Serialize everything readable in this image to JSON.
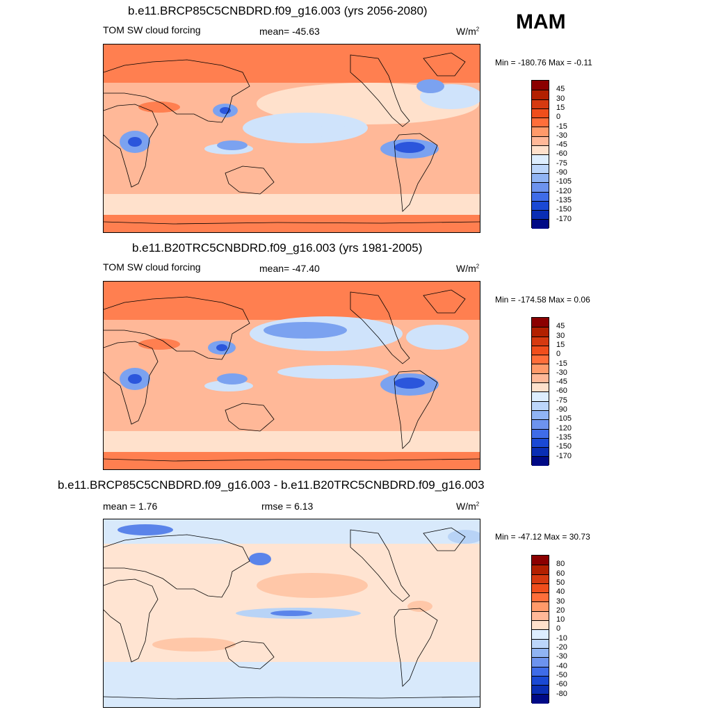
{
  "season": "MAM",
  "unit_main": "W/m",
  "unit_sup": "2",
  "panels": [
    {
      "title": "b.e11.BRCP85C5CNBDRD.f09_g16.003 (yrs 2056-2080)",
      "left_label": "TOM SW cloud forcing",
      "center_label": "mean= -45.63",
      "minmax": "Min = -180.76 Max =  -0.11"
    },
    {
      "title": "b.e11.B20TRC5CNBDRD.f09_g16.003 (yrs 1981-2005)",
      "left_label": "TOM SW cloud forcing",
      "center_label": "mean= -47.40",
      "minmax": "Min = -174.58 Max =   0.06"
    },
    {
      "title": "b.e11.BRCP85C5CNBDRD.f09_g16.003 - b.e11.B20TRC5CNBDRD.f09_g16.003",
      "left_label": "mean =   1.76",
      "center_label": "rmse =   6.13",
      "minmax": "Min = -47.12 Max =  30.73"
    }
  ],
  "chart_data": [
    {
      "type": "heatmap",
      "title": "b.e11.BRCP85C5CNBDRD.f09_g16.003 (yrs 2056-2080)",
      "variable": "TOM SW cloud forcing",
      "units": "W/m2",
      "season": "MAM",
      "mean": -45.63,
      "min": -180.76,
      "max": -0.11,
      "contour_levels": [
        45,
        30,
        15,
        0,
        -15,
        -30,
        -45,
        -60,
        -75,
        -90,
        -105,
        -120,
        -135,
        -150,
        -170
      ],
      "colorbar_colors": [
        "#8b0000",
        "#b22000",
        "#d63a10",
        "#f04e1c",
        "#ff6e3a",
        "#ff9a6a",
        "#ffb898",
        "#ffe1cc",
        "#ddeeff",
        "#bcd6fb",
        "#90b4f4",
        "#6d93ee",
        "#3f6ce8",
        "#1a49d4",
        "#0a2eb4",
        "#000a86"
      ]
    },
    {
      "type": "heatmap",
      "title": "b.e11.B20TRC5CNBDRD.f09_g16.003 (yrs 1981-2005)",
      "variable": "TOM SW cloud forcing",
      "units": "W/m2",
      "season": "MAM",
      "mean": -47.4,
      "min": -174.58,
      "max": 0.06,
      "contour_levels": [
        45,
        30,
        15,
        0,
        -15,
        -30,
        -45,
        -60,
        -75,
        -90,
        -105,
        -120,
        -135,
        -150,
        -170
      ],
      "colorbar_colors": [
        "#8b0000",
        "#b22000",
        "#d63a10",
        "#f04e1c",
        "#ff6e3a",
        "#ff9a6a",
        "#ffb898",
        "#ffe1cc",
        "#ddeeff",
        "#bcd6fb",
        "#90b4f4",
        "#6d93ee",
        "#3f6ce8",
        "#1a49d4",
        "#0a2eb4",
        "#000a86"
      ]
    },
    {
      "type": "heatmap",
      "title": "b.e11.BRCP85C5CNBDRD.f09_g16.003 - b.e11.B20TRC5CNBDRD.f09_g16.003",
      "units": "W/m2",
      "season": "MAM",
      "mean": 1.76,
      "rmse": 6.13,
      "min": -47.12,
      "max": 30.73,
      "contour_levels": [
        80,
        60,
        50,
        40,
        30,
        20,
        10,
        0,
        -10,
        -20,
        -30,
        -40,
        -50,
        -60,
        -80
      ],
      "colorbar_colors": [
        "#8b0000",
        "#b22000",
        "#d63a10",
        "#f04e1c",
        "#ff6e3a",
        "#ff9a6a",
        "#ffb898",
        "#ffe1cc",
        "#ddeeff",
        "#bcd6fb",
        "#90b4f4",
        "#6d93ee",
        "#3f6ce8",
        "#1a49d4",
        "#0a2eb4",
        "#000a86"
      ]
    }
  ],
  "map_colors": {
    "ocean_top": "#ff7f50",
    "ocean_mid": "#ffb898",
    "pale": "#ffe1cc",
    "light_blue": "#cfe3fb",
    "mid_blue": "#7ba2f0",
    "deep_blue": "#2b56dc",
    "diff_base": "#d8e9fb",
    "diff_warm": "#ffe4d2",
    "diff_warm2": "#ffc7a8",
    "diff_cool": "#b8d3f6",
    "diff_cool2": "#5a84ea"
  }
}
